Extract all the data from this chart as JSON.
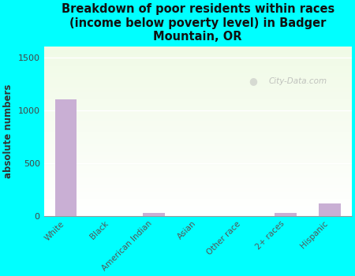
{
  "categories": [
    "White",
    "Black",
    "American Indian",
    "Asian",
    "Other race",
    "2+ races",
    "Hispanic"
  ],
  "values": [
    1100,
    0,
    30,
    0,
    0,
    25,
    115
  ],
  "bar_color": "#c9afd4",
  "title": "Breakdown of poor residents within races\n(income below poverty level) in Badger\nMountain, OR",
  "ylabel": "absolute numbers",
  "ylim": [
    0,
    1600
  ],
  "yticks": [
    0,
    500,
    1000,
    1500
  ],
  "background_color": "#00ffff",
  "watermark": "City-Data.com",
  "title_fontsize": 10.5,
  "ylabel_fontsize": 8.5,
  "tick_fontsize": 7.5
}
